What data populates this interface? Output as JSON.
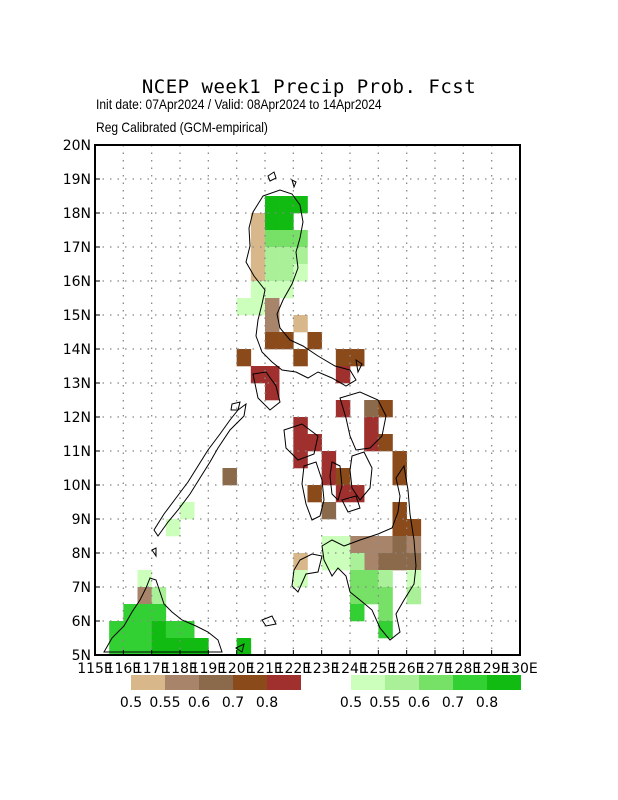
{
  "title": "NCEP week1 Precip Prob. Fcst",
  "subtitle_line1": "Init date: 07Apr2024 / Valid: 08Apr2024 to 14Apr2024",
  "subtitle_line2": "Reg Calibrated (GCM-empirical)",
  "map": {
    "lon_range": [
      115,
      130
    ],
    "lat_range": [
      5,
      20
    ],
    "grid": true,
    "lat_tick_labels": [
      "5N",
      "6N",
      "7N",
      "8N",
      "9N",
      "10N",
      "11N",
      "12N",
      "13N",
      "14N",
      "15N",
      "16N",
      "17N",
      "18N",
      "19N",
      "20N"
    ],
    "lon_tick_labels": [
      "115E",
      "116E",
      "117E",
      "118E",
      "119E",
      "120E",
      "121E",
      "122E",
      "123E",
      "124E",
      "125E",
      "126E",
      "127E",
      "128E",
      "129E",
      "130E"
    ]
  },
  "legend_below": {
    "colors": [
      "#d8b88a",
      "#a8856a",
      "#8a6a4a",
      "#8a4a1a",
      "#a0302e"
    ],
    "labels": [
      "0.5",
      "0.55",
      "0.6",
      "0.7",
      "0.8"
    ]
  },
  "legend_above": {
    "colors": [
      "#ccffbb",
      "#aaf099",
      "#77e066",
      "#33d033",
      "#11bb11"
    ],
    "labels": [
      "0.5",
      "0.55",
      "0.6",
      "0.7",
      "0.8"
    ]
  },
  "colors": {
    "frame": "#000000",
    "grid": "#888888"
  }
}
